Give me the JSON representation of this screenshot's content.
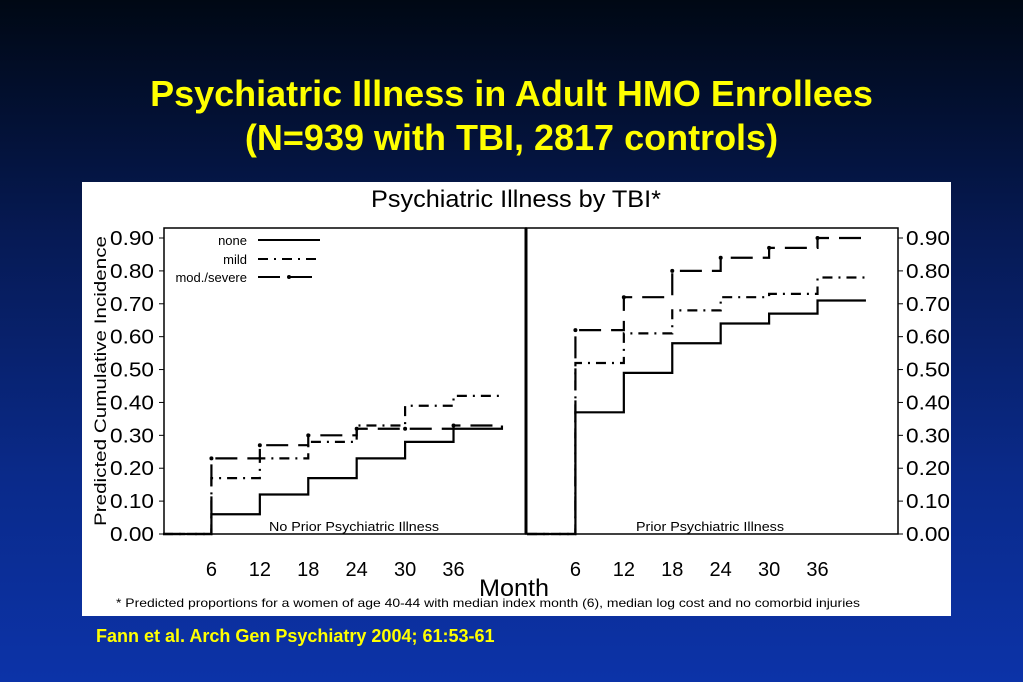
{
  "slide": {
    "title_line1": "Psychiatric Illness in Adult HMO Enrollees",
    "title_line2": "(N=939 with TBI, 2817 controls)",
    "citation": "Fann et al. Arch Gen Psychiatry 2004; 61:53-61"
  },
  "chart_data": {
    "type": "line",
    "title": "Psychiatric Illness by TBI*",
    "ylabel": "Predicted Cumulative Incidence",
    "xlabel": "Month",
    "footnote": "* Predicted proportions for a women of age 40-44 with median index month (6), median log cost and no comorbid injuries",
    "ylim": [
      0,
      0.9
    ],
    "y_ticks": [
      "0.00",
      "0.10",
      "0.20",
      "0.30",
      "0.40",
      "0.50",
      "0.60",
      "0.70",
      "0.80",
      "0.90"
    ],
    "x_ticks": [
      "6",
      "12",
      "18",
      "24",
      "30",
      "36"
    ],
    "step": true,
    "legend": {
      "placement": "top-left",
      "entries": [
        {
          "label": "none",
          "style": "solid"
        },
        {
          "label": "mild",
          "style": "dash-dot"
        },
        {
          "label": "mod./severe",
          "style": "long-dash"
        }
      ]
    },
    "panels": [
      {
        "label": "No Prior Psychiatric Illness",
        "x": [
          0,
          6,
          12,
          18,
          24,
          30,
          36,
          42
        ],
        "series": [
          {
            "name": "none",
            "values": [
              0.0,
              0.06,
              0.12,
              0.17,
              0.23,
              0.28,
              0.32,
              0.33
            ]
          },
          {
            "name": "mild",
            "values": [
              0.0,
              0.17,
              0.23,
              0.28,
              0.33,
              0.39,
              0.42,
              0.42
            ]
          },
          {
            "name": "mod./severe",
            "values": [
              0.0,
              0.23,
              0.27,
              0.3,
              0.32,
              0.32,
              0.33,
              0.33
            ]
          }
        ]
      },
      {
        "label": "Prior Psychiatric Illness",
        "x": [
          0,
          6,
          12,
          18,
          24,
          30,
          36,
          42
        ],
        "series": [
          {
            "name": "none",
            "values": [
              0.0,
              0.37,
              0.49,
              0.58,
              0.64,
              0.67,
              0.71,
              0.71
            ]
          },
          {
            "name": "mild",
            "values": [
              0.0,
              0.52,
              0.61,
              0.68,
              0.72,
              0.73,
              0.78,
              0.78
            ]
          },
          {
            "name": "mod./severe",
            "values": [
              0.0,
              0.62,
              0.72,
              0.8,
              0.84,
              0.87,
              0.9,
              0.9
            ]
          }
        ]
      }
    ]
  }
}
